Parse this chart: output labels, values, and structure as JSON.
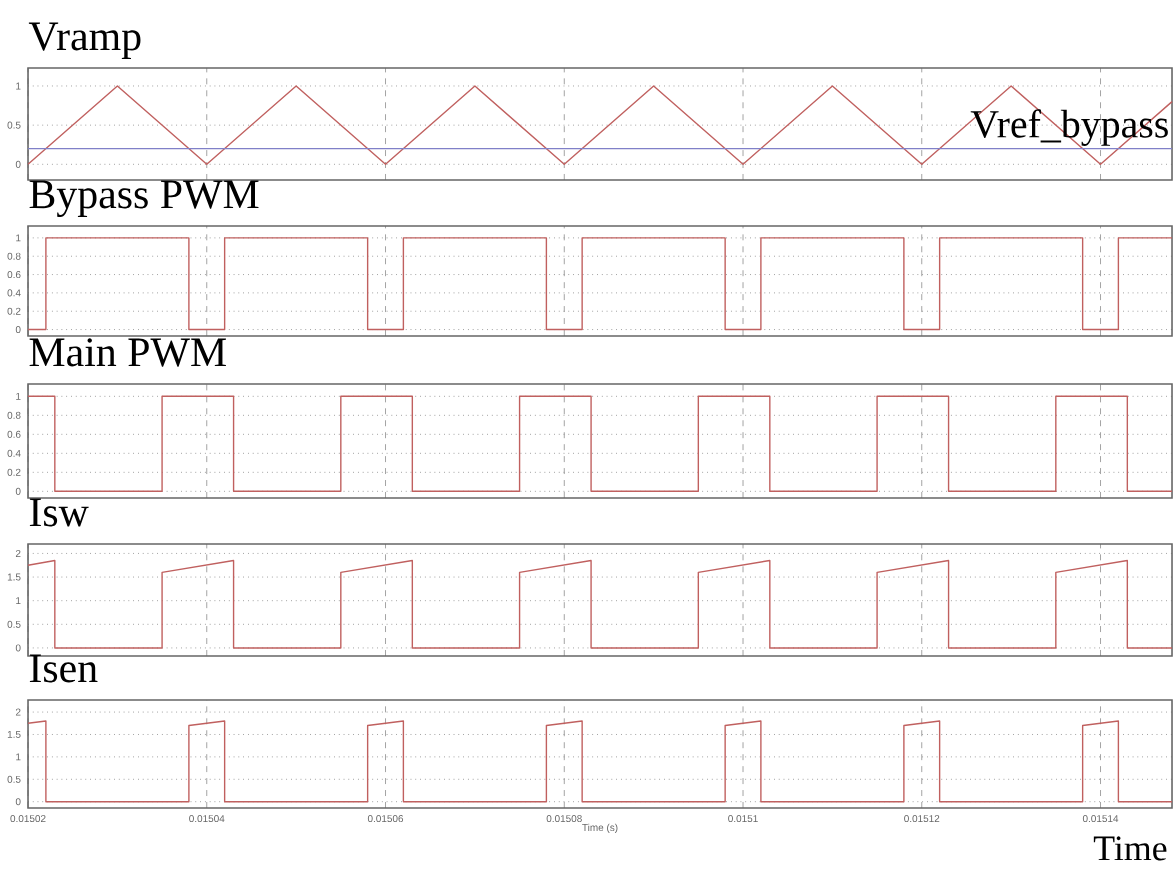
{
  "chart_data": [
    {
      "type": "line",
      "title": "Vramp",
      "xlim": [
        0.01502,
        0.015148
      ],
      "xticks": [
        0.01502,
        0.01504,
        0.01506,
        0.01508,
        0.0151,
        0.01512,
        0.01514
      ],
      "ylim": [
        -0.2,
        1.23
      ],
      "yticks": [
        0,
        0.5,
        1
      ],
      "grid": true,
      "tick_labels": "y",
      "series": [
        {
          "color": "#c0605f",
          "x": [
            0.01502,
            0.01503,
            0.01504,
            0.01505,
            0.01506,
            0.01507,
            0.01508,
            0.01509,
            0.0151,
            0.01511,
            0.01512,
            0.01513,
            0.01514,
            0.015148
          ],
          "values": [
            0,
            1,
            0,
            1,
            0,
            1,
            0,
            1,
            0,
            1,
            0,
            1,
            0,
            0.8
          ]
        },
        {
          "name": "Vref_bypass",
          "color": "#8080c8",
          "x": [
            0.01502,
            0.015148
          ],
          "values": [
            0.2,
            0.2
          ]
        }
      ]
    },
    {
      "type": "line",
      "title": "Bypass PWM",
      "xlim": [
        0.01502,
        0.015148
      ],
      "xticks": [
        0.01502,
        0.01504,
        0.01506,
        0.01508,
        0.0151,
        0.01512,
        0.01514
      ],
      "ylim": [
        -0.07,
        1.13
      ],
      "yticks": [
        0,
        0.2,
        0.4,
        0.6,
        0.8,
        1
      ],
      "grid": true,
      "tick_labels": "y",
      "series": [
        {
          "color": "#c0605f",
          "x": [
            0.01502,
            0.015022,
            0.015022,
            0.015038,
            0.015038,
            0.015042,
            0.015042,
            0.015058,
            0.015058,
            0.015062,
            0.015062,
            0.015078,
            0.015078,
            0.015082,
            0.015082,
            0.015098,
            0.015098,
            0.015102,
            0.015102,
            0.015118,
            0.015118,
            0.015122,
            0.015122,
            0.015138,
            0.015138,
            0.015142,
            0.015142,
            0.015148
          ],
          "values": [
            0,
            0,
            1,
            1,
            0,
            0,
            1,
            1,
            0,
            0,
            1,
            1,
            0,
            0,
            1,
            1,
            0,
            0,
            1,
            1,
            0,
            0,
            1,
            1,
            0,
            0,
            1,
            1
          ]
        }
      ]
    },
    {
      "type": "line",
      "title": "Main PWM",
      "xlim": [
        0.01502,
        0.015148
      ],
      "xticks": [
        0.01502,
        0.01504,
        0.01506,
        0.01508,
        0.0151,
        0.01512,
        0.01514
      ],
      "ylim": [
        -0.07,
        1.13
      ],
      "yticks": [
        0,
        0.2,
        0.4,
        0.6,
        0.8,
        1
      ],
      "grid": true,
      "tick_labels": "y",
      "series": [
        {
          "color": "#c0605f",
          "x": [
            0.01502,
            0.015023,
            0.015023,
            0.015035,
            0.015035,
            0.015043,
            0.015043,
            0.015055,
            0.015055,
            0.015063,
            0.015063,
            0.015075,
            0.015075,
            0.015083,
            0.015083,
            0.015095,
            0.015095,
            0.015103,
            0.015103,
            0.015115,
            0.015115,
            0.015123,
            0.015123,
            0.015135,
            0.015135,
            0.015143,
            0.015143,
            0.015148
          ],
          "values": [
            1,
            1,
            0,
            0,
            1,
            1,
            0,
            0,
            1,
            1,
            0,
            0,
            1,
            1,
            0,
            0,
            1,
            1,
            0,
            0,
            1,
            1,
            0,
            0,
            1,
            1,
            0,
            0
          ]
        }
      ]
    },
    {
      "type": "line",
      "title": "Isw",
      "xlim": [
        0.01502,
        0.015148
      ],
      "xticks": [
        0.01502,
        0.01504,
        0.01506,
        0.01508,
        0.0151,
        0.01512,
        0.01514
      ],
      "ylim": [
        -0.17,
        2.2
      ],
      "yticks": [
        0,
        0.5,
        1,
        1.5,
        2
      ],
      "grid": true,
      "tick_labels": "y",
      "series": [
        {
          "color": "#c0605f",
          "x": [
            0.01502,
            0.015023,
            0.015023,
            0.015035,
            0.015035,
            0.015043,
            0.015043,
            0.015055,
            0.015055,
            0.015063,
            0.015063,
            0.015075,
            0.015075,
            0.015083,
            0.015083,
            0.015095,
            0.015095,
            0.015103,
            0.015103,
            0.015115,
            0.015115,
            0.015123,
            0.015123,
            0.015135,
            0.015135,
            0.015143,
            0.015143,
            0.015148
          ],
          "values": [
            1.75,
            1.85,
            0,
            0,
            1.6,
            1.85,
            0,
            0,
            1.6,
            1.85,
            0,
            0,
            1.6,
            1.85,
            0,
            0,
            1.6,
            1.85,
            0,
            0,
            1.6,
            1.85,
            0,
            0,
            1.6,
            1.85,
            0,
            0
          ]
        }
      ]
    },
    {
      "type": "line",
      "title": "Isen",
      "xlabel": "Time (s)",
      "annotations": [
        "Time"
      ],
      "xlim": [
        0.01502,
        0.015148
      ],
      "xticks": [
        0.01502,
        0.01504,
        0.01506,
        0.01508,
        0.0151,
        0.01512,
        0.01514
      ],
      "ylim": [
        -0.14,
        2.27
      ],
      "yticks": [
        0,
        0.5,
        1,
        1.5,
        2
      ],
      "grid": true,
      "series": [
        {
          "color": "#c0605f",
          "x": [
            0.01502,
            0.015022,
            0.015022,
            0.015038,
            0.015038,
            0.015042,
            0.015042,
            0.015058,
            0.015058,
            0.015062,
            0.015062,
            0.015078,
            0.015078,
            0.015082,
            0.015082,
            0.015098,
            0.015098,
            0.015102,
            0.015102,
            0.015118,
            0.015118,
            0.015122,
            0.015122,
            0.015138,
            0.015138,
            0.015142,
            0.015142,
            0.015148
          ],
          "values": [
            1.75,
            1.8,
            0,
            0,
            1.7,
            1.8,
            0,
            0,
            1.7,
            1.8,
            0,
            0,
            1.7,
            1.8,
            0,
            0,
            1.7,
            1.8,
            0,
            0,
            1.7,
            1.8,
            0,
            0,
            1.7,
            1.8,
            0,
            0
          ]
        }
      ]
    }
  ]
}
